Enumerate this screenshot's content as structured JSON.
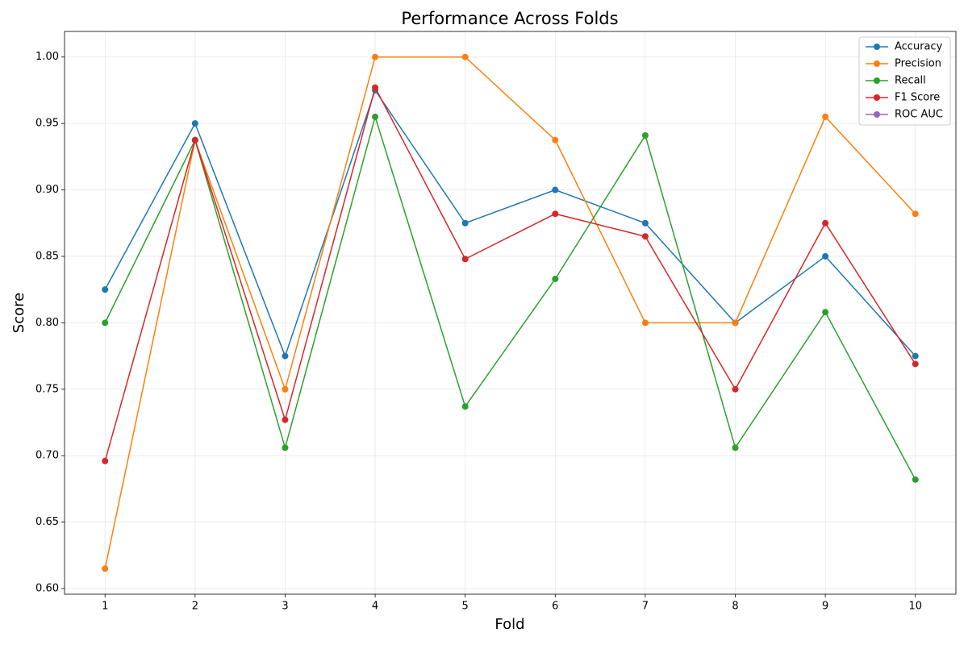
{
  "chart_data": {
    "type": "line",
    "title": "Performance Across Folds",
    "xlabel": "Fold",
    "ylabel": "Score",
    "x": [
      1,
      2,
      3,
      4,
      5,
      6,
      7,
      8,
      9,
      10
    ],
    "series": [
      {
        "name": "Accuracy",
        "color": "#1f77b4",
        "values": [
          0.825,
          0.95,
          0.775,
          0.975,
          0.875,
          0.9,
          0.875,
          0.8,
          0.85,
          0.775
        ]
      },
      {
        "name": "Precision",
        "color": "#ff7f0e",
        "values": [
          0.615,
          0.9375,
          0.75,
          1.0,
          1.0,
          0.9375,
          0.8,
          0.8,
          0.955,
          0.882
        ]
      },
      {
        "name": "Recall",
        "color": "#2ca02c",
        "values": [
          0.8,
          0.9375,
          0.706,
          0.955,
          0.737,
          0.833,
          0.941,
          0.706,
          0.808,
          0.682
        ]
      },
      {
        "name": "F1 Score",
        "color": "#d62728",
        "values": [
          0.696,
          0.9375,
          0.727,
          0.977,
          0.848,
          0.882,
          0.865,
          0.75,
          0.875,
          0.769
        ]
      },
      {
        "name": "ROC AUC",
        "color": "#9467bd",
        "values": [
          null,
          null,
          null,
          null,
          null,
          null,
          null,
          null,
          null,
          null
        ]
      }
    ],
    "xlim": [
      0.55,
      10.45
    ],
    "xticks": [
      1,
      2,
      3,
      4,
      5,
      6,
      7,
      8,
      9,
      10
    ],
    "ylim": [
      0.59575,
      1.01925
    ],
    "yticks": [
      {
        "value": 0.6,
        "label": "0.60"
      },
      {
        "value": 0.65,
        "label": "0.65"
      },
      {
        "value": 0.7,
        "label": "0.70"
      },
      {
        "value": 0.75,
        "label": "0.75"
      },
      {
        "value": 0.8,
        "label": "0.80"
      },
      {
        "value": 0.85,
        "label": "0.85"
      },
      {
        "value": 0.9,
        "label": "0.90"
      },
      {
        "value": 0.95,
        "label": "0.95"
      },
      {
        "value": 1.0,
        "label": "1.00"
      }
    ],
    "grid": true,
    "legend": "upper right"
  }
}
